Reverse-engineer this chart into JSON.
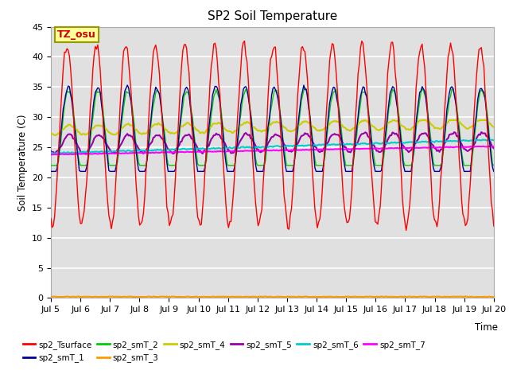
{
  "title": "SP2 Soil Temperature",
  "xlabel": "Time",
  "ylabel": "Soil Temperature (C)",
  "ylim": [
    0,
    45
  ],
  "yticks": [
    0,
    5,
    10,
    15,
    20,
    25,
    30,
    35,
    40,
    45
  ],
  "x_tick_labels": [
    "Jul 5",
    "Jul 6",
    "Jul 7",
    "Jul 8",
    "Jul 9",
    "Jul 10",
    "Jul 11",
    "Jul 12",
    "Jul 13",
    "Jul 14",
    "Jul 15",
    "Jul 16",
    "Jul 17",
    "Jul 18",
    "Jul 19",
    "Jul 20"
  ],
  "annotation_text": "TZ_osu",
  "annotation_bg": "#ffff99",
  "annotation_border": "#999900",
  "series_colors": {
    "sp2_Tsurface": "#ff0000",
    "sp2_smT_1": "#000099",
    "sp2_smT_2": "#00cc00",
    "sp2_smT_3": "#ff9900",
    "sp2_smT_4": "#cccc00",
    "sp2_smT_5": "#9900aa",
    "sp2_smT_6": "#00cccc",
    "sp2_smT_7": "#ff00ff"
  },
  "background_color": "#ffffff",
  "plot_bg_color": "#e0e0e0",
  "grid_color": "#ffffff",
  "linewidth": 1.0
}
